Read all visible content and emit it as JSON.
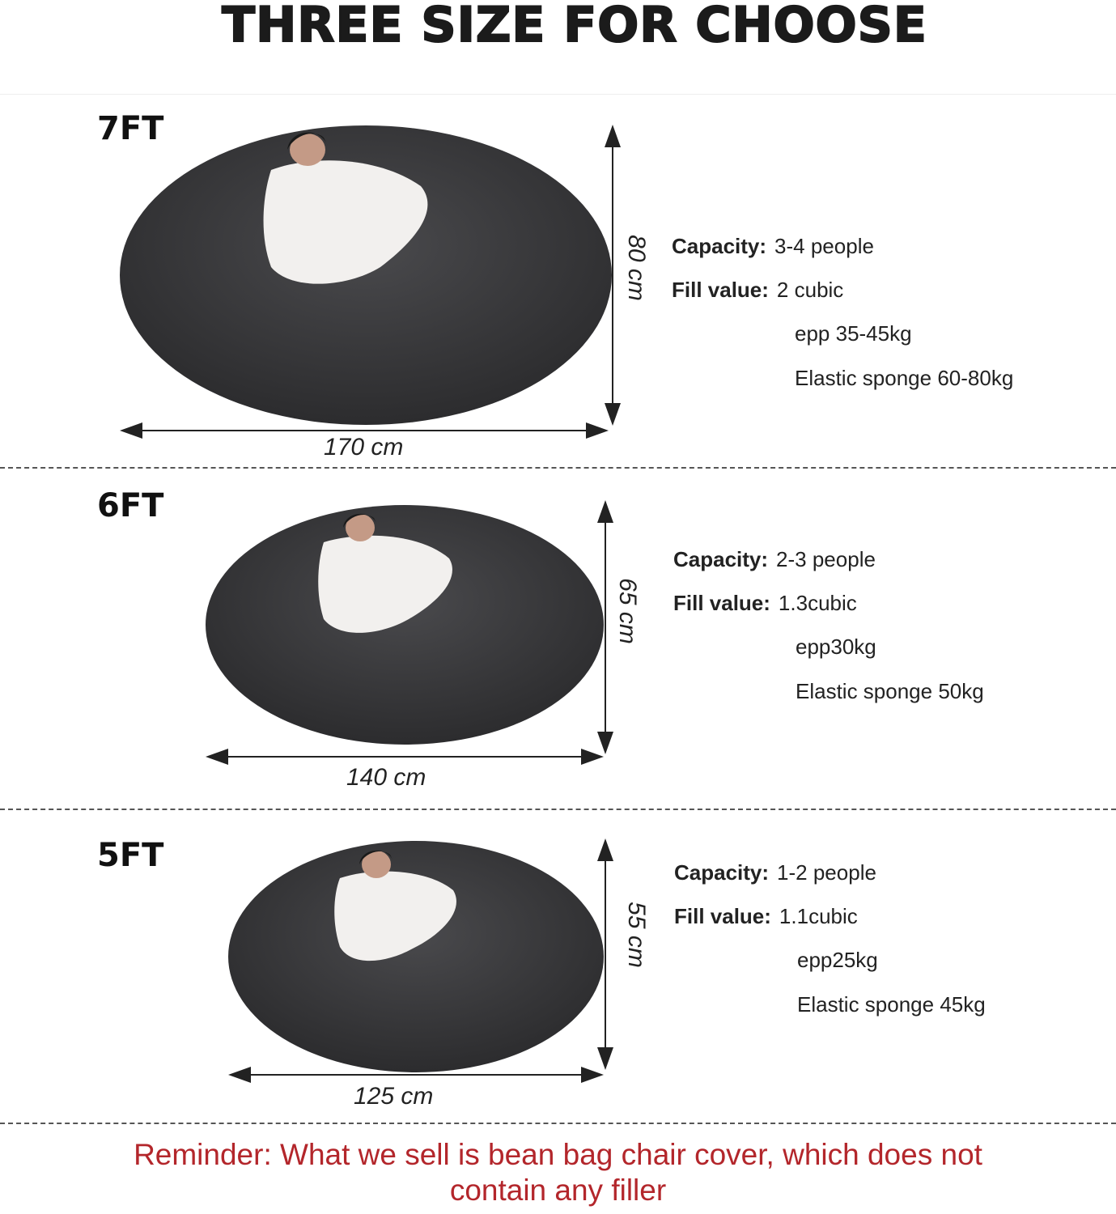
{
  "title": "THREE SIZE FOR CHOOSE",
  "colors": {
    "bag": "#3a3a3c",
    "reminder": "#b3262b",
    "blanket": "#f2f0ee"
  },
  "sizes": [
    {
      "label": "7FT",
      "width": "170 cm",
      "height": "80 cm",
      "capacity_label": "Capacity:",
      "capacity": "3-4 people",
      "fill_label": "Fill value:",
      "fill": "2 cubic",
      "epp": "epp 35-45kg",
      "sponge": "Elastic sponge 60-80kg"
    },
    {
      "label": "6FT",
      "width": "140 cm",
      "height": "65 cm",
      "capacity_label": "Capacity:",
      "capacity": "2-3 people",
      "fill_label": "Fill value:",
      "fill": "1.3cubic",
      "epp": "epp30kg",
      "sponge": "Elastic sponge 50kg"
    },
    {
      "label": "5FT",
      "width": "125 cm",
      "height": "55 cm",
      "capacity_label": "Capacity:",
      "capacity": "1-2 people",
      "fill_label": "Fill value:",
      "fill": "1.1cubic",
      "epp": "epp25kg",
      "sponge": "Elastic sponge 45kg"
    }
  ],
  "reminder": {
    "line1": "Reminder: What we sell is bean bag chair cover, which does not",
    "line2": "contain any filler"
  }
}
